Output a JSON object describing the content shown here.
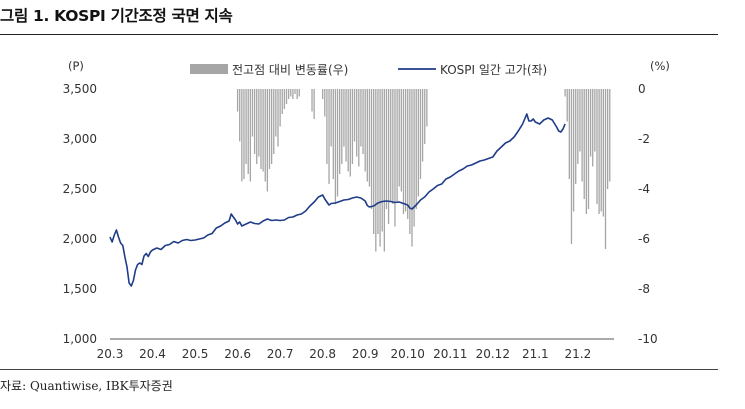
{
  "title": "그림 1. KOSPI 기간조정 국면 지속",
  "source": "자료: Quantiwise, IBK투자증권",
  "chart_data": {
    "type": "bar+line",
    "left_axis": {
      "unit_label": "(P)",
      "ticks": [
        "3,500",
        "3,000",
        "2,500",
        "2,000",
        "1,500",
        "1,000"
      ],
      "range": [
        1000,
        3500
      ]
    },
    "right_axis": {
      "unit_label": "(%)",
      "ticks": [
        "0",
        "-2",
        "-4",
        "-6",
        "-8",
        "-10"
      ],
      "range": [
        -10,
        0
      ]
    },
    "x_ticks": [
      "20.3",
      "20.4",
      "20.5",
      "20.6",
      "20.7",
      "20.8",
      "20.9",
      "20.10",
      "20.11",
      "20.12",
      "21.1",
      "21.2"
    ],
    "legend": [
      {
        "name": "전고점 대비 변동률(우)",
        "kind": "bar",
        "color": "#a6a6a6"
      },
      {
        "name": "KOSPI 일간 고가(좌)",
        "kind": "line",
        "color": "#1f3c88"
      }
    ],
    "colors": {
      "bar": "#a6a6a6",
      "line": "#1f3c88"
    },
    "series": [
      {
        "name": "전고점 대비 변동률(우)",
        "axis": "right",
        "points": [
          [
            3.0,
            0
          ],
          [
            3.5,
            0
          ],
          [
            4.0,
            0
          ],
          [
            4.5,
            0
          ],
          [
            5.0,
            0
          ],
          [
            5.5,
            0
          ],
          [
            6.0,
            -0.9
          ],
          [
            6.05,
            -2.1
          ],
          [
            6.1,
            -3.7
          ],
          [
            6.15,
            -3.6
          ],
          [
            6.2,
            -3.0
          ],
          [
            6.25,
            -3.4
          ],
          [
            6.3,
            -3.7
          ],
          [
            6.35,
            -1.9
          ],
          [
            6.4,
            -2.6
          ],
          [
            6.45,
            -3.0
          ],
          [
            6.5,
            -2.7
          ],
          [
            6.55,
            -3.2
          ],
          [
            6.6,
            -3.3
          ],
          [
            6.65,
            -3.7
          ],
          [
            6.7,
            -4.1
          ],
          [
            6.75,
            -3.2
          ],
          [
            6.8,
            -3.0
          ],
          [
            6.85,
            -2.6
          ],
          [
            6.9,
            -1.9
          ],
          [
            6.95,
            -2.3
          ],
          [
            7.0,
            -1.5
          ],
          [
            7.05,
            -1.0
          ],
          [
            7.1,
            -0.8
          ],
          [
            7.15,
            -0.6
          ],
          [
            7.2,
            -0.4
          ],
          [
            7.25,
            -0.3
          ],
          [
            7.3,
            -0.4
          ],
          [
            7.35,
            -0.2
          ],
          [
            7.4,
            -0.4
          ],
          [
            7.45,
            -0.3
          ],
          [
            7.75,
            -0.9
          ],
          [
            7.8,
            -1.2
          ],
          [
            8.0,
            -0.4
          ],
          [
            8.05,
            -1.1
          ],
          [
            8.1,
            -3.0
          ],
          [
            8.15,
            -3.8
          ],
          [
            8.2,
            -2.3
          ],
          [
            8.25,
            -3.6
          ],
          [
            8.3,
            -4.6
          ],
          [
            8.35,
            -4.3
          ],
          [
            8.4,
            -3.4
          ],
          [
            8.45,
            -3.0
          ],
          [
            8.5,
            -2.3
          ],
          [
            8.55,
            -2.9
          ],
          [
            8.6,
            -3.3
          ],
          [
            8.65,
            -3.5
          ],
          [
            8.7,
            -3.0
          ],
          [
            8.75,
            -2.1
          ],
          [
            8.8,
            -2.7
          ],
          [
            8.85,
            -3.1
          ],
          [
            8.9,
            -2.3
          ],
          [
            8.95,
            -2.6
          ],
          [
            9.0,
            -3.3
          ],
          [
            9.05,
            -3.7
          ],
          [
            9.1,
            -3.9
          ],
          [
            9.15,
            -4.8
          ],
          [
            9.2,
            -5.8
          ],
          [
            9.25,
            -6.5
          ],
          [
            9.3,
            -5.8
          ],
          [
            9.35,
            -6.3
          ],
          [
            9.4,
            -5.7
          ],
          [
            9.45,
            -6.5
          ],
          [
            9.5,
            -4.8
          ],
          [
            9.55,
            -5.4
          ],
          [
            9.6,
            -4.5
          ],
          [
            9.65,
            -4.6
          ],
          [
            9.7,
            -5.5
          ],
          [
            9.75,
            -4.5
          ],
          [
            9.8,
            -3.9
          ],
          [
            9.85,
            -4.1
          ],
          [
            9.9,
            -5.0
          ],
          [
            9.95,
            -4.9
          ],
          [
            10.0,
            -5.2
          ],
          [
            10.05,
            -5.8
          ],
          [
            10.1,
            -6.3
          ],
          [
            10.15,
            -5.5
          ],
          [
            10.2,
            -4.8
          ],
          [
            10.25,
            -4.3
          ],
          [
            10.3,
            -3.6
          ],
          [
            10.35,
            -2.9
          ],
          [
            10.4,
            -2.2
          ],
          [
            10.45,
            -1.5
          ],
          [
            11.0,
            0
          ],
          [
            11.5,
            0
          ],
          [
            12.0,
            0
          ],
          [
            12.5,
            0
          ],
          [
            13.0,
            0
          ],
          [
            13.5,
            0
          ],
          [
            13.7,
            -0.3
          ],
          [
            13.75,
            -1.3
          ],
          [
            13.8,
            -3.6
          ],
          [
            13.85,
            -6.2
          ],
          [
            13.9,
            -4.9
          ],
          [
            13.95,
            -3.8
          ],
          [
            14.0,
            -3.0
          ],
          [
            14.05,
            -2.5
          ],
          [
            14.1,
            -3.7
          ],
          [
            14.15,
            -4.4
          ],
          [
            14.2,
            -5.0
          ],
          [
            14.25,
            -4.8
          ],
          [
            14.3,
            -2.7
          ],
          [
            14.35,
            -3.1
          ],
          [
            14.4,
            -2.5
          ],
          [
            14.45,
            -4.6
          ],
          [
            14.5,
            -5.0
          ],
          [
            14.55,
            -4.9
          ],
          [
            14.6,
            -5.1
          ],
          [
            14.65,
            -6.4
          ],
          [
            14.7,
            -4.0
          ],
          [
            14.75,
            -3.7
          ]
        ]
      },
      {
        "name": "KOSPI 일간 고가(좌)",
        "axis": "left",
        "points": [
          [
            3.0,
            2020
          ],
          [
            3.05,
            1970
          ],
          [
            3.1,
            2040
          ],
          [
            3.15,
            2090
          ],
          [
            3.2,
            2020
          ],
          [
            3.25,
            1960
          ],
          [
            3.3,
            1935
          ],
          [
            3.35,
            1820
          ],
          [
            3.4,
            1720
          ],
          [
            3.45,
            1560
          ],
          [
            3.5,
            1530
          ],
          [
            3.55,
            1585
          ],
          [
            3.6,
            1690
          ],
          [
            3.65,
            1745
          ],
          [
            3.7,
            1760
          ],
          [
            3.75,
            1745
          ],
          [
            3.8,
            1830
          ],
          [
            3.85,
            1855
          ],
          [
            3.9,
            1825
          ],
          [
            3.95,
            1870
          ],
          [
            4.0,
            1890
          ],
          [
            4.1,
            1910
          ],
          [
            4.2,
            1895
          ],
          [
            4.3,
            1935
          ],
          [
            4.4,
            1945
          ],
          [
            4.5,
            1975
          ],
          [
            4.6,
            1960
          ],
          [
            4.7,
            1985
          ],
          [
            4.8,
            1995
          ],
          [
            4.9,
            1985
          ],
          [
            5.0,
            1990
          ],
          [
            5.1,
            2000
          ],
          [
            5.2,
            2010
          ],
          [
            5.3,
            2040
          ],
          [
            5.4,
            2055
          ],
          [
            5.5,
            2110
          ],
          [
            5.6,
            2130
          ],
          [
            5.7,
            2160
          ],
          [
            5.8,
            2180
          ],
          [
            5.85,
            2250
          ],
          [
            5.9,
            2220
          ],
          [
            5.95,
            2190
          ],
          [
            6.0,
            2150
          ],
          [
            6.05,
            2170
          ],
          [
            6.1,
            2130
          ],
          [
            6.2,
            2150
          ],
          [
            6.3,
            2170
          ],
          [
            6.4,
            2155
          ],
          [
            6.5,
            2150
          ],
          [
            6.6,
            2180
          ],
          [
            6.7,
            2200
          ],
          [
            6.8,
            2185
          ],
          [
            6.9,
            2190
          ],
          [
            7.0,
            2185
          ],
          [
            7.1,
            2190
          ],
          [
            7.2,
            2215
          ],
          [
            7.3,
            2220
          ],
          [
            7.4,
            2240
          ],
          [
            7.5,
            2250
          ],
          [
            7.6,
            2280
          ],
          [
            7.7,
            2330
          ],
          [
            7.8,
            2370
          ],
          [
            7.9,
            2420
          ],
          [
            8.0,
            2440
          ],
          [
            8.05,
            2400
          ],
          [
            8.1,
            2370
          ],
          [
            8.15,
            2340
          ],
          [
            8.2,
            2355
          ],
          [
            8.3,
            2360
          ],
          [
            8.4,
            2375
          ],
          [
            8.5,
            2390
          ],
          [
            8.6,
            2395
          ],
          [
            8.7,
            2410
          ],
          [
            8.8,
            2420
          ],
          [
            8.9,
            2410
          ],
          [
            9.0,
            2380
          ],
          [
            9.05,
            2335
          ],
          [
            9.1,
            2320
          ],
          [
            9.2,
            2330
          ],
          [
            9.3,
            2360
          ],
          [
            9.4,
            2375
          ],
          [
            9.5,
            2380
          ],
          [
            9.6,
            2375
          ],
          [
            9.7,
            2365
          ],
          [
            9.8,
            2370
          ],
          [
            9.9,
            2355
          ],
          [
            10.0,
            2340
          ],
          [
            10.05,
            2310
          ],
          [
            10.1,
            2300
          ],
          [
            10.2,
            2340
          ],
          [
            10.3,
            2390
          ],
          [
            10.4,
            2420
          ],
          [
            10.5,
            2470
          ],
          [
            10.6,
            2500
          ],
          [
            10.7,
            2535
          ],
          [
            10.8,
            2550
          ],
          [
            10.9,
            2600
          ],
          [
            11.0,
            2620
          ],
          [
            11.1,
            2650
          ],
          [
            11.2,
            2680
          ],
          [
            11.3,
            2700
          ],
          [
            11.4,
            2730
          ],
          [
            11.5,
            2740
          ],
          [
            11.6,
            2760
          ],
          [
            11.7,
            2780
          ],
          [
            11.8,
            2790
          ],
          [
            11.9,
            2805
          ],
          [
            12.0,
            2820
          ],
          [
            12.1,
            2880
          ],
          [
            12.2,
            2920
          ],
          [
            12.3,
            2960
          ],
          [
            12.4,
            2980
          ],
          [
            12.5,
            3020
          ],
          [
            12.6,
            3080
          ],
          [
            12.7,
            3150
          ],
          [
            12.75,
            3200
          ],
          [
            12.8,
            3250
          ],
          [
            12.85,
            3180
          ],
          [
            12.9,
            3180
          ],
          [
            12.95,
            3200
          ],
          [
            13.0,
            3170
          ],
          [
            13.1,
            3150
          ],
          [
            13.2,
            3190
          ],
          [
            13.3,
            3210
          ],
          [
            13.4,
            3190
          ],
          [
            13.5,
            3120
          ],
          [
            13.55,
            3080
          ],
          [
            13.6,
            3070
          ],
          [
            13.65,
            3100
          ],
          [
            13.7,
            3150
          ]
        ]
      }
    ]
  }
}
